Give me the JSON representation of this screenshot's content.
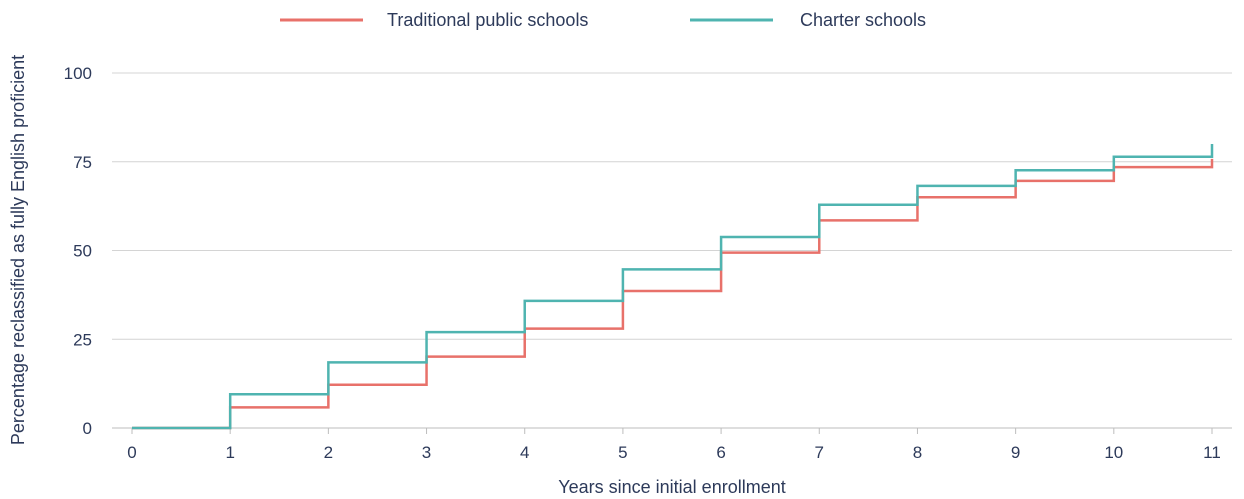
{
  "chart_data": {
    "type": "line",
    "step": true,
    "title": "",
    "xlabel": "Years since initial enrollment",
    "ylabel": "Percentage reclassified as fully English proficient",
    "x": [
      0,
      1,
      2,
      3,
      4,
      5,
      6,
      7,
      8,
      9,
      10,
      11
    ],
    "x_ticks": [
      "0",
      "1",
      "2",
      "3",
      "4",
      "5",
      "6",
      "7",
      "8",
      "9",
      "10",
      "11"
    ],
    "xlim": [
      0,
      11
    ],
    "y_ticks": [
      "0",
      "25",
      "50",
      "75",
      "100"
    ],
    "ylim": [
      0,
      100
    ],
    "grid": true,
    "legend_position": "top",
    "series": [
      {
        "name": "Traditional public schools",
        "color": "#e8716a",
        "values": [
          0,
          5.8,
          12.2,
          20.1,
          28.0,
          38.6,
          49.4,
          58.5,
          65.0,
          69.6,
          73.5,
          75.8
        ]
      },
      {
        "name": "Charter schools",
        "color": "#4fb4b0",
        "values": [
          0,
          9.5,
          18.5,
          27.0,
          35.8,
          44.7,
          53.8,
          62.9,
          68.2,
          72.6,
          76.4,
          80.0
        ]
      }
    ]
  }
}
